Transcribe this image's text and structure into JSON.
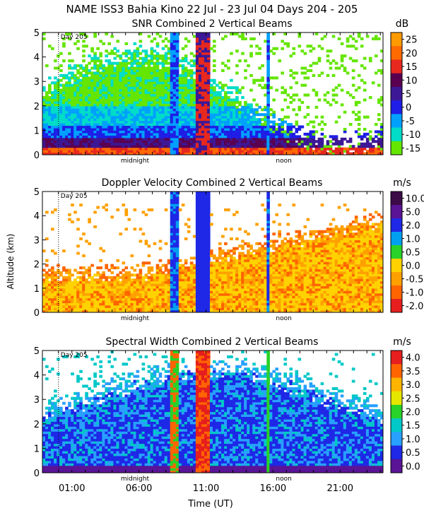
{
  "title": "NAME ISS3 Bahia Kino  22 Jul - 23 Jul 04 Days 204 - 205",
  "xlabel": "Time (UT)",
  "ylabel": "Altitude (km)",
  "x_ticks": [
    "01:00",
    "06:00",
    "11:00",
    "16:00",
    "21:00"
  ],
  "x_tick_hours": [
    1,
    6,
    11,
    16,
    21
  ],
  "markers": [
    "midnight",
    "noon"
  ],
  "marker_hours": [
    5.7,
    16.8
  ],
  "day_label": "Day 205",
  "chart_data": [
    {
      "type": "heatmap",
      "title": "SNR Combined 2 Vertical Beams",
      "unit": "dB",
      "xlabel": "Time (UT)",
      "ylabel": "Altitude (km)",
      "xlim": [
        -1.2,
        24.2
      ],
      "ylim": [
        0,
        5
      ],
      "y_ticks": [
        "0",
        "1",
        "2",
        "3",
        "4",
        "5"
      ],
      "colorbar_ticks": [
        "25",
        "20",
        "15",
        "10",
        "5",
        "0",
        "-5",
        "-10",
        "-15"
      ],
      "colorbar_values": [
        25,
        20,
        15,
        10,
        5,
        0,
        -5,
        -10,
        -15
      ],
      "colorbar_colors": [
        "#ff9a00",
        "#ff6a00",
        "#e8281e",
        "#5a0050",
        "#3c1896",
        "#1e1ee6",
        "#00a0ff",
        "#00dcc8",
        "#64e600"
      ]
    },
    {
      "type": "heatmap",
      "title": "Doppler Velocity Combined 2 Vertical Beams",
      "unit": "m/s",
      "xlabel": "Time (UT)",
      "ylabel": "Altitude (km)",
      "xlim": [
        -1.2,
        24.2
      ],
      "ylim": [
        0,
        5
      ],
      "y_ticks": [
        "0",
        "1",
        "2",
        "3",
        "4",
        "5"
      ],
      "colorbar_ticks": [
        "10.0",
        "5.0",
        "2.0",
        "1.0",
        "0.5",
        "0.0",
        "-0.5",
        "-1.0",
        "-2.0"
      ],
      "colorbar_values": [
        10,
        5,
        2,
        1,
        0.5,
        0,
        -0.5,
        -1,
        -2
      ],
      "colorbar_colors": [
        "#3c0a46",
        "#5a1496",
        "#1e28e6",
        "#00a0f0",
        "#28d228",
        "#ffd200",
        "#ffa000",
        "#ff6400",
        "#e61e1e"
      ]
    },
    {
      "type": "heatmap",
      "title": "Spectral Width Combined 2 Vertical Beams",
      "unit": "m/s",
      "xlabel": "Time (UT)",
      "ylabel": "Altitude (km)",
      "xlim": [
        -1.2,
        24.2
      ],
      "ylim": [
        0,
        5
      ],
      "y_ticks": [
        "0",
        "1",
        "2",
        "3",
        "4",
        "5"
      ],
      "colorbar_ticks": [
        "4.0",
        "3.5",
        "3.0",
        "2.5",
        "2.0",
        "1.5",
        "1.0",
        "0.5",
        "0.0"
      ],
      "colorbar_values": [
        4,
        3.5,
        3,
        2.5,
        2,
        1.5,
        1,
        0.5,
        0
      ],
      "colorbar_colors": [
        "#e61e1e",
        "#ff6400",
        "#ffb400",
        "#e6e600",
        "#28d228",
        "#00c8c8",
        "#28a0ff",
        "#1e28e6",
        "#5a1496"
      ]
    }
  ]
}
